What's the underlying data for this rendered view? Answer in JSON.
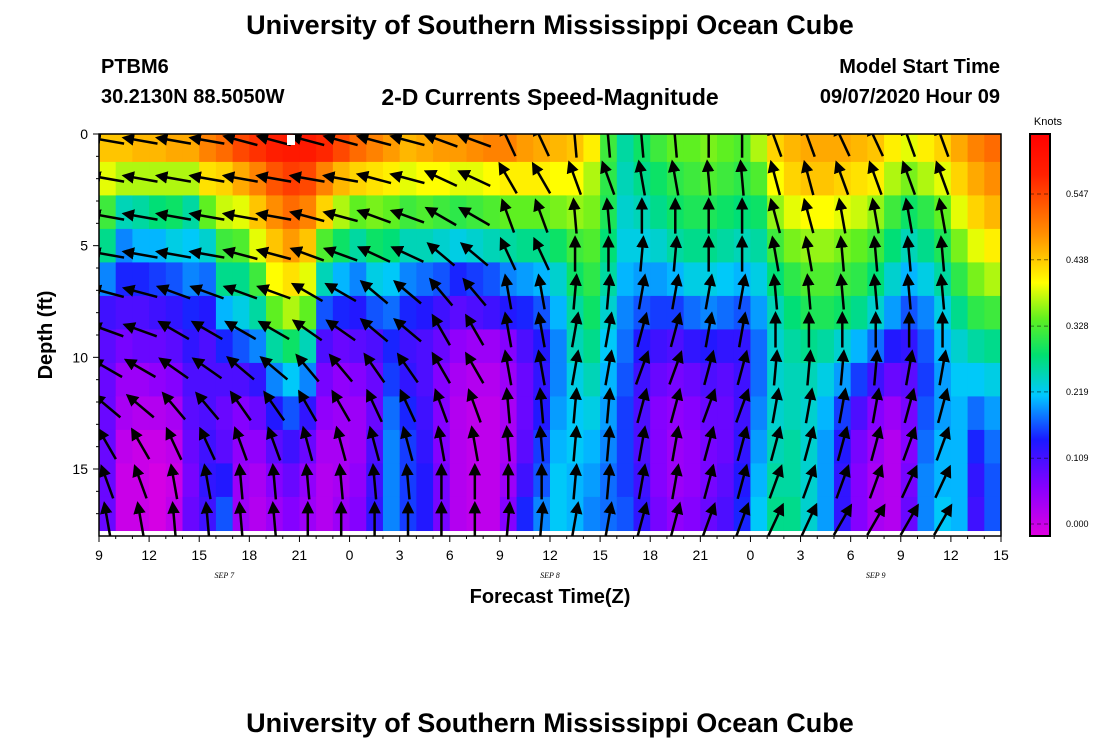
{
  "header": {
    "title": "University of Southern Mississippi Ocean Cube",
    "station_id": "PTBM6",
    "station_location": "30.2130N 88.5050W",
    "subtitle": "2-D Currents Speed-Magnitude",
    "model_start_label": "Model Start Time",
    "model_start_value": "09/07/2020 Hour 09"
  },
  "footer": {
    "title": "University of Southern Mississippi Ocean Cube"
  },
  "chart_data": {
    "type": "heatmap",
    "title": "2-D Currents Speed-Magnitude",
    "xlabel": "Forecast Time(Z)",
    "ylabel": "Depth (ft)",
    "x_unit": "forecast hour from model start (09/07/2020 09Z)",
    "xlim": [
      0,
      54
    ],
    "ylim": [
      0,
      18
    ],
    "y_inverted": true,
    "x_ticks": [
      {
        "hour": 0,
        "label": "9"
      },
      {
        "hour": 3,
        "label": "12"
      },
      {
        "hour": 6,
        "label": "15"
      },
      {
        "hour": 9,
        "label": "18"
      },
      {
        "hour": 12,
        "label": "21"
      },
      {
        "hour": 15,
        "label": "0"
      },
      {
        "hour": 18,
        "label": "3"
      },
      {
        "hour": 21,
        "label": "6"
      },
      {
        "hour": 24,
        "label": "9"
      },
      {
        "hour": 27,
        "label": "12"
      },
      {
        "hour": 30,
        "label": "15"
      },
      {
        "hour": 33,
        "label": "18"
      },
      {
        "hour": 36,
        "label": "21"
      },
      {
        "hour": 39,
        "label": "0"
      },
      {
        "hour": 42,
        "label": "3"
      },
      {
        "hour": 45,
        "label": "6"
      },
      {
        "hour": 48,
        "label": "9"
      },
      {
        "hour": 51,
        "label": "12"
      },
      {
        "hour": 54,
        "label": "15"
      }
    ],
    "date_labels": [
      {
        "hour": 7.5,
        "label": "SEP 7"
      },
      {
        "hour": 27,
        "label": "SEP 8"
      },
      {
        "hour": 46.5,
        "label": "SEP 9"
      }
    ],
    "y_ticks": [
      0,
      5,
      10,
      15
    ],
    "grid": false,
    "colorbar": {
      "title": "Knots",
      "labels": [
        "0.000",
        "0.109",
        "0.219",
        "0.328",
        "0.438",
        "0.547"
      ],
      "values": [
        0.0,
        0.109,
        0.219,
        0.328,
        0.438,
        0.547
      ],
      "range": [
        0,
        0.65
      ],
      "colors": [
        "#e000e0",
        "#8800ff",
        "#1a1aff",
        "#00c8ff",
        "#00e070",
        "#60f020",
        "#ffff00",
        "#ff9000",
        "#ff2000",
        "#ff0000"
      ]
    },
    "depth_levels": [
      0.5,
      2,
      3.5,
      5,
      6.5,
      8,
      9.5,
      11,
      12.5,
      14,
      15.5,
      17
    ],
    "speed_columns": [
      {
        "hour": 0,
        "speeds": [
          0.45,
          0.4,
          0.33,
          0.28,
          0.2,
          0.13,
          0.11,
          0.1,
          0.1,
          0.1,
          0.1,
          0.1
        ]
      },
      {
        "hour": 1,
        "speeds": [
          0.45,
          0.38,
          0.26,
          0.2,
          0.16,
          0.12,
          0.09,
          0.06,
          0.05,
          0.03,
          0.02,
          0.02
        ]
      },
      {
        "hour": 2,
        "speeds": [
          0.46,
          0.38,
          0.27,
          0.22,
          0.16,
          0.12,
          0.1,
          0.06,
          0.04,
          0.02,
          0.02,
          0.02
        ]
      },
      {
        "hour": 3,
        "speeds": [
          0.46,
          0.38,
          0.29,
          0.22,
          0.17,
          0.13,
          0.1,
          0.07,
          0.04,
          0.02,
          0.01,
          0.01
        ]
      },
      {
        "hour": 4,
        "speeds": [
          0.47,
          0.38,
          0.3,
          0.24,
          0.18,
          0.14,
          0.11,
          0.08,
          0.05,
          0.03,
          0.02,
          0.03
        ]
      },
      {
        "hour": 5,
        "speeds": [
          0.47,
          0.38,
          0.27,
          0.23,
          0.2,
          0.16,
          0.14,
          0.12,
          0.11,
          0.1,
          0.09,
          0.1
        ]
      },
      {
        "hour": 6,
        "speeds": [
          0.5,
          0.43,
          0.35,
          0.25,
          0.19,
          0.15,
          0.12,
          0.12,
          0.12,
          0.13,
          0.14,
          0.13
        ]
      },
      {
        "hour": 7,
        "speeds": [
          0.52,
          0.44,
          0.39,
          0.33,
          0.28,
          0.22,
          0.16,
          0.12,
          0.1,
          0.11,
          0.15,
          0.18
        ]
      },
      {
        "hour": 8,
        "speeds": [
          0.55,
          0.47,
          0.4,
          0.34,
          0.28,
          0.24,
          0.18,
          0.12,
          0.08,
          0.07,
          0.06,
          0.06
        ]
      },
      {
        "hour": 9,
        "speeds": [
          0.57,
          0.5,
          0.45,
          0.4,
          0.33,
          0.27,
          0.2,
          0.14,
          0.1,
          0.07,
          0.05,
          0.04
        ]
      },
      {
        "hour": 10,
        "speeds": [
          0.59,
          0.54,
          0.49,
          0.45,
          0.41,
          0.35,
          0.27,
          0.2,
          0.15,
          0.11,
          0.08,
          0.06
        ]
      },
      {
        "hour": 11,
        "speeds": [
          0.6,
          0.56,
          0.52,
          0.48,
          0.43,
          0.38,
          0.3,
          0.23,
          0.18,
          0.13,
          0.1,
          0.08
        ]
      },
      {
        "hour": 12,
        "speeds": [
          0.6,
          0.55,
          0.5,
          0.45,
          0.4,
          0.35,
          0.26,
          0.2,
          0.14,
          0.1,
          0.07,
          0.06
        ]
      },
      {
        "hour": 13,
        "speeds": [
          0.58,
          0.5,
          0.44,
          0.34,
          0.26,
          0.18,
          0.12,
          0.09,
          0.07,
          0.05,
          0.04,
          0.04
        ]
      },
      {
        "hour": 14,
        "speeds": [
          0.55,
          0.46,
          0.38,
          0.3,
          0.22,
          0.16,
          0.1,
          0.07,
          0.06,
          0.05,
          0.05,
          0.06
        ]
      },
      {
        "hour": 15,
        "speeds": [
          0.52,
          0.44,
          0.35,
          0.27,
          0.2,
          0.15,
          0.11,
          0.08,
          0.06,
          0.06,
          0.07,
          0.08
        ]
      },
      {
        "hour": 16,
        "speeds": [
          0.5,
          0.43,
          0.36,
          0.3,
          0.24,
          0.18,
          0.12,
          0.1,
          0.1,
          0.12,
          0.13,
          0.14
        ]
      },
      {
        "hour": 17,
        "speeds": [
          0.48,
          0.42,
          0.35,
          0.29,
          0.23,
          0.19,
          0.16,
          0.17,
          0.19,
          0.2,
          0.2,
          0.2
        ]
      },
      {
        "hour": 18,
        "speeds": [
          0.46,
          0.4,
          0.33,
          0.26,
          0.2,
          0.16,
          0.13,
          0.14,
          0.16,
          0.17,
          0.17,
          0.17
        ]
      },
      {
        "hour": 19,
        "speeds": [
          0.47,
          0.41,
          0.34,
          0.26,
          0.19,
          0.15,
          0.12,
          0.12,
          0.13,
          0.14,
          0.15,
          0.15
        ]
      },
      {
        "hour": 20,
        "speeds": [
          0.48,
          0.41,
          0.33,
          0.25,
          0.18,
          0.13,
          0.1,
          0.08,
          0.08,
          0.08,
          0.09,
          0.09
        ]
      },
      {
        "hour": 21,
        "speeds": [
          0.48,
          0.4,
          0.32,
          0.24,
          0.16,
          0.11,
          0.07,
          0.05,
          0.04,
          0.04,
          0.04,
          0.04
        ]
      },
      {
        "hour": 22,
        "speeds": [
          0.49,
          0.4,
          0.33,
          0.25,
          0.17,
          0.12,
          0.06,
          0.04,
          0.03,
          0.03,
          0.03,
          0.03
        ]
      },
      {
        "hour": 23,
        "speeds": [
          0.5,
          0.41,
          0.34,
          0.26,
          0.18,
          0.13,
          0.06,
          0.04,
          0.03,
          0.03,
          0.03,
          0.03
        ]
      },
      {
        "hour": 24,
        "speeds": [
          0.5,
          0.42,
          0.35,
          0.27,
          0.2,
          0.15,
          0.08,
          0.06,
          0.05,
          0.05,
          0.06,
          0.08
        ]
      },
      {
        "hour": 25,
        "speeds": [
          0.48,
          0.42,
          0.35,
          0.28,
          0.21,
          0.16,
          0.12,
          0.1,
          0.1,
          0.11,
          0.13,
          0.16
        ]
      },
      {
        "hour": 26,
        "speeds": [
          0.47,
          0.42,
          0.35,
          0.28,
          0.22,
          0.18,
          0.15,
          0.14,
          0.15,
          0.17,
          0.18,
          0.2
        ]
      },
      {
        "hour": 27,
        "speeds": [
          0.46,
          0.41,
          0.36,
          0.3,
          0.25,
          0.22,
          0.2,
          0.2,
          0.21,
          0.22,
          0.23,
          0.23
        ]
      },
      {
        "hour": 28,
        "speeds": [
          0.45,
          0.41,
          0.37,
          0.33,
          0.3,
          0.27,
          0.26,
          0.24,
          0.23,
          0.23,
          0.22,
          0.22
        ]
      },
      {
        "hour": 29,
        "speeds": [
          0.42,
          0.38,
          0.36,
          0.34,
          0.32,
          0.3,
          0.28,
          0.26,
          0.24,
          0.22,
          0.21,
          0.2
        ]
      },
      {
        "hour": 30,
        "speeds": [
          0.33,
          0.32,
          0.31,
          0.29,
          0.27,
          0.25,
          0.23,
          0.22,
          0.21,
          0.2,
          0.19,
          0.19
        ]
      },
      {
        "hour": 31,
        "speeds": [
          0.27,
          0.26,
          0.25,
          0.24,
          0.22,
          0.2,
          0.19,
          0.18,
          0.17,
          0.17,
          0.17,
          0.18
        ]
      },
      {
        "hour": 32,
        "speeds": [
          0.3,
          0.28,
          0.26,
          0.24,
          0.21,
          0.18,
          0.15,
          0.13,
          0.12,
          0.12,
          0.13,
          0.14
        ]
      },
      {
        "hour": 33,
        "speeds": [
          0.33,
          0.3,
          0.28,
          0.25,
          0.21,
          0.17,
          0.13,
          0.1,
          0.08,
          0.08,
          0.08,
          0.09
        ]
      },
      {
        "hour": 34,
        "speeds": [
          0.35,
          0.32,
          0.3,
          0.27,
          0.22,
          0.17,
          0.12,
          0.09,
          0.07,
          0.06,
          0.06,
          0.07
        ]
      },
      {
        "hour": 35,
        "speeds": [
          0.35,
          0.33,
          0.31,
          0.28,
          0.24,
          0.19,
          0.14,
          0.1,
          0.08,
          0.07,
          0.07,
          0.08
        ]
      },
      {
        "hour": 36,
        "speeds": [
          0.36,
          0.34,
          0.31,
          0.28,
          0.24,
          0.2,
          0.15,
          0.12,
          0.1,
          0.09,
          0.09,
          0.1
        ]
      },
      {
        "hour": 37,
        "speeds": [
          0.35,
          0.33,
          0.3,
          0.27,
          0.23,
          0.19,
          0.14,
          0.11,
          0.1,
          0.1,
          0.11,
          0.12
        ]
      },
      {
        "hour": 38,
        "speeds": [
          0.34,
          0.32,
          0.29,
          0.26,
          0.22,
          0.18,
          0.14,
          0.13,
          0.13,
          0.14,
          0.15,
          0.16
        ]
      },
      {
        "hour": 39,
        "speeds": [
          0.38,
          0.34,
          0.3,
          0.27,
          0.24,
          0.21,
          0.19,
          0.19,
          0.2,
          0.21,
          0.22,
          0.23
        ]
      },
      {
        "hour": 40,
        "speeds": [
          0.44,
          0.41,
          0.37,
          0.33,
          0.29,
          0.26,
          0.25,
          0.25,
          0.25,
          0.26,
          0.27,
          0.28
        ]
      },
      {
        "hour": 41,
        "speeds": [
          0.46,
          0.44,
          0.4,
          0.36,
          0.32,
          0.29,
          0.27,
          0.26,
          0.26,
          0.27,
          0.27,
          0.28
        ]
      },
      {
        "hour": 42,
        "speeds": [
          0.47,
          0.45,
          0.41,
          0.37,
          0.34,
          0.31,
          0.28,
          0.26,
          0.25,
          0.25,
          0.25,
          0.25
        ]
      },
      {
        "hour": 43,
        "speeds": [
          0.47,
          0.45,
          0.41,
          0.37,
          0.34,
          0.31,
          0.27,
          0.24,
          0.22,
          0.21,
          0.21,
          0.21
        ]
      },
      {
        "hour": 44,
        "speeds": [
          0.47,
          0.44,
          0.4,
          0.36,
          0.33,
          0.3,
          0.25,
          0.21,
          0.17,
          0.15,
          0.14,
          0.14
        ]
      },
      {
        "hour": 45,
        "speeds": [
          0.46,
          0.43,
          0.39,
          0.35,
          0.32,
          0.28,
          0.22,
          0.17,
          0.12,
          0.09,
          0.08,
          0.08
        ]
      },
      {
        "hour": 46,
        "speeds": [
          0.45,
          0.42,
          0.37,
          0.33,
          0.29,
          0.25,
          0.19,
          0.13,
          0.08,
          0.06,
          0.05,
          0.05
        ]
      },
      {
        "hour": 47,
        "speeds": [
          0.42,
          0.38,
          0.33,
          0.29,
          0.25,
          0.21,
          0.15,
          0.1,
          0.06,
          0.04,
          0.04,
          0.04
        ]
      },
      {
        "hour": 48,
        "speeds": [
          0.4,
          0.36,
          0.3,
          0.26,
          0.22,
          0.18,
          0.14,
          0.11,
          0.09,
          0.08,
          0.09,
          0.1
        ]
      },
      {
        "hour": 49,
        "speeds": [
          0.42,
          0.38,
          0.32,
          0.28,
          0.24,
          0.2,
          0.18,
          0.17,
          0.18,
          0.19,
          0.2,
          0.2
        ]
      },
      {
        "hour": 50,
        "speeds": [
          0.44,
          0.4,
          0.35,
          0.31,
          0.27,
          0.24,
          0.22,
          0.21,
          0.21,
          0.22,
          0.22,
          0.23
        ]
      },
      {
        "hour": 51,
        "speeds": [
          0.47,
          0.44,
          0.4,
          0.36,
          0.32,
          0.28,
          0.25,
          0.23,
          0.22,
          0.22,
          0.22,
          0.22
        ]
      },
      {
        "hour": 52,
        "speeds": [
          0.5,
          0.47,
          0.44,
          0.4,
          0.36,
          0.32,
          0.27,
          0.23,
          0.19,
          0.16,
          0.14,
          0.13
        ]
      },
      {
        "hour": 53,
        "speeds": [
          0.52,
          0.49,
          0.46,
          0.42,
          0.38,
          0.33,
          0.28,
          0.24,
          0.21,
          0.19,
          0.18,
          0.18
        ]
      }
    ],
    "vector_hours": [
      0.5,
      2.5,
      4.5,
      6.5,
      8.5,
      10.5,
      12.5,
      14.5,
      16.5,
      18.5,
      20.5,
      22.5,
      24.5,
      26.5,
      28.5,
      30.5,
      32.5,
      34.5,
      36.5,
      38.5,
      40.5,
      42.5,
      44.5,
      46.5,
      48.5,
      50.5,
      52.5
    ],
    "vector_depths": [
      0.3,
      2,
      3.7,
      5.4,
      7.1,
      8.8,
      10.5,
      12.2,
      13.9,
      15.6,
      17.3
    ],
    "vector_directions_deg_from_east": [
      [
        170,
        170,
        165,
        165,
        165,
        160,
        115,
        95,
        95,
        90,
        110,
        115,
        110
      ],
      [
        170,
        170,
        170,
        170,
        165,
        155,
        120,
        110,
        100,
        95,
        105,
        110,
        110
      ],
      [
        170,
        170,
        170,
        165,
        160,
        150,
        110,
        95,
        90,
        90,
        105,
        100,
        100
      ],
      [
        170,
        170,
        165,
        160,
        155,
        140,
        115,
        90,
        85,
        90,
        100,
        95,
        95
      ],
      [
        165,
        160,
        160,
        150,
        140,
        130,
        100,
        85,
        80,
        80,
        95,
        95,
        95
      ],
      [
        160,
        150,
        150,
        145,
        140,
        120,
        100,
        80,
        75,
        80,
        90,
        90,
        90
      ],
      [
        150,
        145,
        140,
        130,
        125,
        120,
        100,
        80,
        70,
        75,
        85,
        85,
        80
      ],
      [
        140,
        130,
        125,
        120,
        115,
        110,
        95,
        85,
        75,
        70,
        80,
        80,
        75
      ],
      [
        120,
        115,
        110,
        105,
        105,
        100,
        95,
        85,
        80,
        75,
        75,
        75,
        70
      ],
      [
        110,
        100,
        95,
        95,
        95,
        90,
        90,
        85,
        80,
        75,
        70,
        70,
        65
      ],
      [
        100,
        95,
        95,
        90,
        90,
        90,
        85,
        80,
        75,
        70,
        65,
        60,
        60
      ]
    ]
  }
}
